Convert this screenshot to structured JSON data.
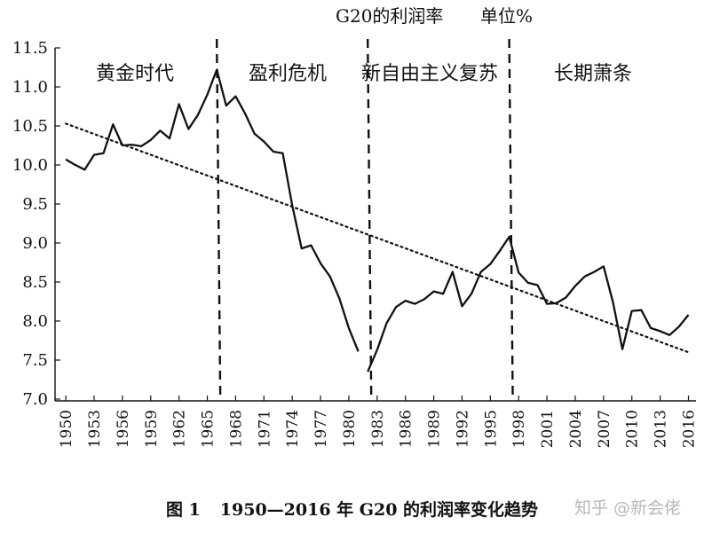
{
  "chart_data": {
    "type": "line",
    "title": "G20的利润率",
    "unit": "单位%",
    "x": [
      1950,
      1951,
      1952,
      1953,
      1954,
      1955,
      1956,
      1957,
      1958,
      1959,
      1960,
      1961,
      1962,
      1963,
      1964,
      1965,
      1966,
      1967,
      1968,
      1969,
      1970,
      1971,
      1972,
      1973,
      1974,
      1975,
      1976,
      1977,
      1978,
      1979,
      1980,
      1981,
      1982,
      1983,
      1984,
      1985,
      1986,
      1987,
      1988,
      1989,
      1990,
      1991,
      1992,
      1993,
      1994,
      1995,
      1996,
      1997,
      1998,
      1999,
      2000,
      2001,
      2002,
      2003,
      2004,
      2005,
      2006,
      2007,
      2008,
      2009,
      2010,
      2011,
      2012,
      2013,
      2014,
      2015,
      2016
    ],
    "segments": [
      {
        "years": [
          1950,
          1981
        ],
        "values": [
          10.07,
          10.0,
          9.94,
          10.13,
          10.15,
          10.52,
          10.25,
          10.26,
          10.24,
          10.32,
          10.44,
          10.34,
          10.78,
          10.46,
          10.64,
          10.9,
          11.22,
          10.76,
          10.88,
          10.66,
          10.4,
          10.3,
          10.17,
          10.15,
          9.48,
          8.93,
          8.97,
          8.74,
          8.57,
          8.29,
          7.91,
          7.61
        ]
      },
      {
        "years": [
          1982,
          2016
        ],
        "values": [
          7.35,
          7.63,
          7.97,
          8.18,
          8.26,
          8.22,
          8.28,
          8.38,
          8.35,
          8.63,
          8.19,
          8.35,
          8.63,
          8.73,
          8.9,
          9.08,
          8.62,
          8.49,
          8.46,
          8.22,
          8.23,
          8.3,
          8.45,
          8.57,
          8.63,
          8.7,
          8.24,
          7.64,
          8.13,
          8.14,
          7.91,
          7.87,
          7.82,
          7.93,
          8.08
        ]
      }
    ],
    "trend": {
      "style": "dotted",
      "from": [
        1950,
        10.53
      ],
      "to": [
        2016,
        7.6
      ]
    },
    "dividers": [
      1966,
      1982,
      1997
    ],
    "periods": [
      "黄金时代",
      "盈利危机",
      "新自由主义复苏",
      "长期萧条"
    ],
    "ylim": [
      7.0,
      11.5
    ],
    "yticks": [
      7.0,
      7.5,
      8.0,
      8.5,
      9.0,
      9.5,
      10.0,
      10.5,
      11.0,
      11.5
    ],
    "xticks": [
      1950,
      1953,
      1956,
      1959,
      1962,
      1965,
      1968,
      1971,
      1974,
      1977,
      1980,
      1983,
      1986,
      1989,
      1992,
      1995,
      1998,
      2001,
      2004,
      2007,
      2010,
      2013,
      2016
    ],
    "xlim": [
      1949.8,
      2016.8
    ],
    "grid": false,
    "legend": "none",
    "line_color": "#111111"
  },
  "caption": {
    "figure": "图 1",
    "text": "1950—2016 年 G20 的利润率变化趋势"
  },
  "watermark": "知乎 @新会佬"
}
